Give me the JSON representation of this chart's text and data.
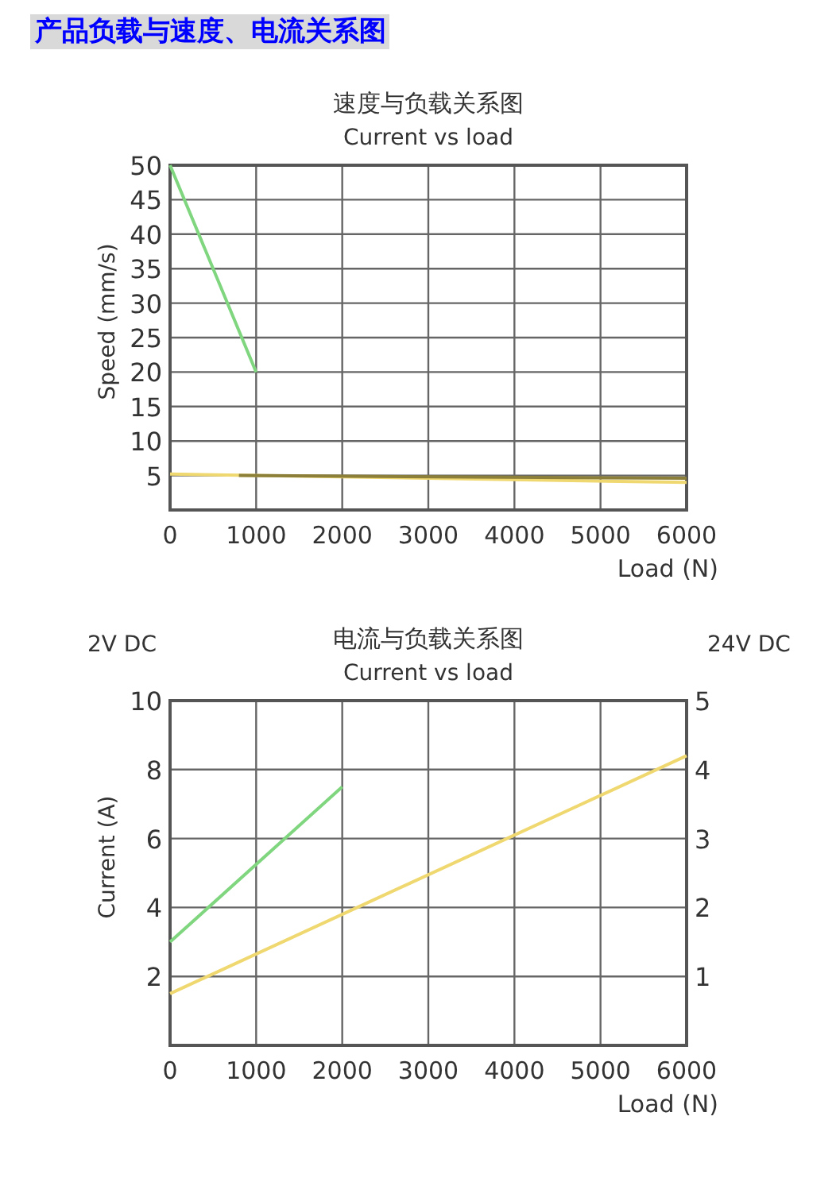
{
  "chart_data": [
    {
      "type": "line",
      "title": "速度与负载关系图",
      "subtitle": "Current vs load",
      "xlabel": "Load (N)",
      "ylabel": "Speed (mm/s)",
      "annotations": [
        "产品负载与速度、电流关系图"
      ],
      "xlim": [
        0,
        6000
      ],
      "xticks": [
        0,
        1000,
        2000,
        3000,
        4000,
        5000,
        6000
      ],
      "ylim": [
        0,
        50
      ],
      "yticks": [
        5,
        10,
        15,
        20,
        25,
        30,
        35,
        40,
        45,
        50
      ],
      "grid": true,
      "series": [
        {
          "color": "#7fd67f",
          "x": [
            0,
            1000
          ],
          "values": [
            50,
            20
          ]
        },
        {
          "color": "#f0d870",
          "x": [
            0,
            6000
          ],
          "values": [
            5.2,
            4
          ]
        },
        {
          "color": "#8c7f3a",
          "x": [
            800,
            6000
          ],
          "values": [
            5,
            4.6
          ]
        }
      ]
    },
    {
      "type": "line",
      "title": "电流与负载关系图",
      "subtitle": "Current vs load",
      "xlabel": "Load (N)",
      "ylabel": "Current (A)",
      "annotations": [
        "2V DC",
        "24V DC"
      ],
      "xlim": [
        0,
        6000
      ],
      "xticks": [
        0,
        1000,
        2000,
        3000,
        4000,
        5000,
        6000
      ],
      "ylim": [
        0,
        10
      ],
      "yticks": [
        2,
        4,
        6,
        8,
        10
      ],
      "y2lim": [
        0,
        5
      ],
      "y2ticks": [
        1,
        2,
        3,
        4,
        5
      ],
      "grid": true,
      "series": [
        {
          "color": "#7fd67f",
          "x": [
            0,
            2000
          ],
          "values": [
            3,
            7.5
          ]
        },
        {
          "color": "#f0d870",
          "axis": "y2",
          "x": [
            0,
            6000
          ],
          "values": [
            0.75,
            4.2
          ]
        }
      ]
    }
  ]
}
